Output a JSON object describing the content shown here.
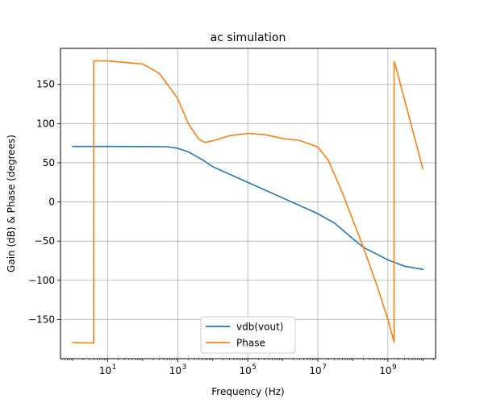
{
  "chart_data": {
    "type": "line",
    "title": "ac simulation",
    "xlabel": "Frequency (Hz)",
    "ylabel": "Gain (dB) & Phase (degrees)",
    "xscale": "log",
    "xlim": [
      0.45,
      23000000000.0
    ],
    "ylim": [
      -200,
      196
    ],
    "grid": true,
    "legend_position": "bottom-center",
    "xticks": [
      {
        "value": 10,
        "label": "10",
        "exp": "1"
      },
      {
        "value": 1000,
        "label": "10",
        "exp": "3"
      },
      {
        "value": 100000,
        "label": "10",
        "exp": "5"
      },
      {
        "value": 10000000,
        "label": "10",
        "exp": "7"
      },
      {
        "value": 1000000000,
        "label": "10",
        "exp": "9"
      }
    ],
    "yticks": [
      {
        "value": -150,
        "label": "−150"
      },
      {
        "value": -100,
        "label": "−100"
      },
      {
        "value": -50,
        "label": "−50"
      },
      {
        "value": 0,
        "label": "0"
      },
      {
        "value": 50,
        "label": "50"
      },
      {
        "value": 100,
        "label": "100"
      },
      {
        "value": 150,
        "label": "150"
      }
    ],
    "series": [
      {
        "name": "vdb(vout)",
        "color": "#1f77b4",
        "x": [
          1,
          10,
          100,
          500,
          1000,
          2000,
          5000,
          10000,
          100000,
          1000000,
          10000000,
          30000000,
          100000000,
          200000000,
          500000000,
          1000000000,
          3000000000,
          10000000000
        ],
        "y": [
          70.8,
          70.8,
          70.7,
          70.5,
          68.5,
          64,
          54,
          45,
          25,
          5,
          -15,
          -27,
          -47,
          -58,
          -67,
          -74,
          -82,
          -86
        ]
      },
      {
        "name": "Phase",
        "color": "#ff7f0e",
        "x": [
          1,
          4,
          4,
          10,
          100,
          300,
          1000,
          2000,
          4000,
          6000,
          10000,
          30000,
          100000,
          300000,
          1000000,
          3000000,
          10000000,
          20000000,
          50000000,
          100000000,
          200000000,
          500000000,
          1000000000,
          1500000000,
          1500000000,
          1700000000,
          3000000000,
          10000000000
        ],
        "y": [
          -179.5,
          -180,
          180,
          180,
          176,
          164,
          132,
          100,
          80,
          76,
          78,
          84.5,
          87.5,
          86,
          81,
          78.5,
          70,
          53,
          12,
          -23,
          -58,
          -108,
          -150,
          -179,
          179,
          172,
          130,
          42
        ]
      }
    ]
  }
}
